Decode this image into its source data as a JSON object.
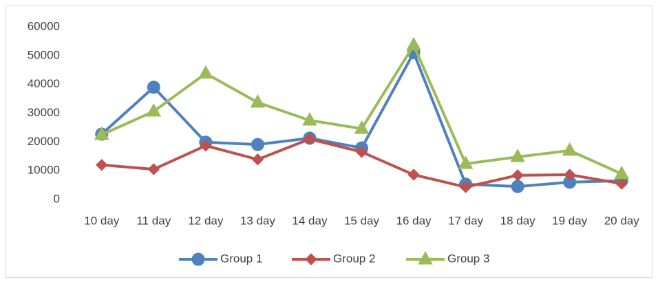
{
  "chart_data": {
    "type": "line",
    "categories": [
      "10 day",
      "11 day",
      "12 day",
      "13 day",
      "14 day",
      "15 day",
      "16 day",
      "17 day",
      "18 day",
      "19 day",
      "20 day"
    ],
    "series": [
      {
        "name": "Group 1",
        "color": "#4f81bd",
        "marker": "circle",
        "values": [
          22700,
          39000,
          19900,
          19100,
          21300,
          17900,
          51000,
          5300,
          4500,
          6000,
          6500
        ]
      },
      {
        "name": "Group 2",
        "color": "#c0504d",
        "marker": "diamond",
        "values": [
          12000,
          10500,
          18700,
          13900,
          21000,
          16500,
          8600,
          4300,
          8400,
          8600,
          5500
        ]
      },
      {
        "name": "Group 3",
        "color": "#9bbb59",
        "marker": "triangle",
        "values": [
          22500,
          30600,
          43800,
          33700,
          27500,
          24600,
          53600,
          12400,
          14800,
          17000,
          8900
        ]
      }
    ],
    "ylim": [
      0,
      60000
    ],
    "yticks": [
      0,
      10000,
      20000,
      30000,
      40000,
      50000,
      60000
    ],
    "grid": false,
    "legend": "bottom"
  }
}
